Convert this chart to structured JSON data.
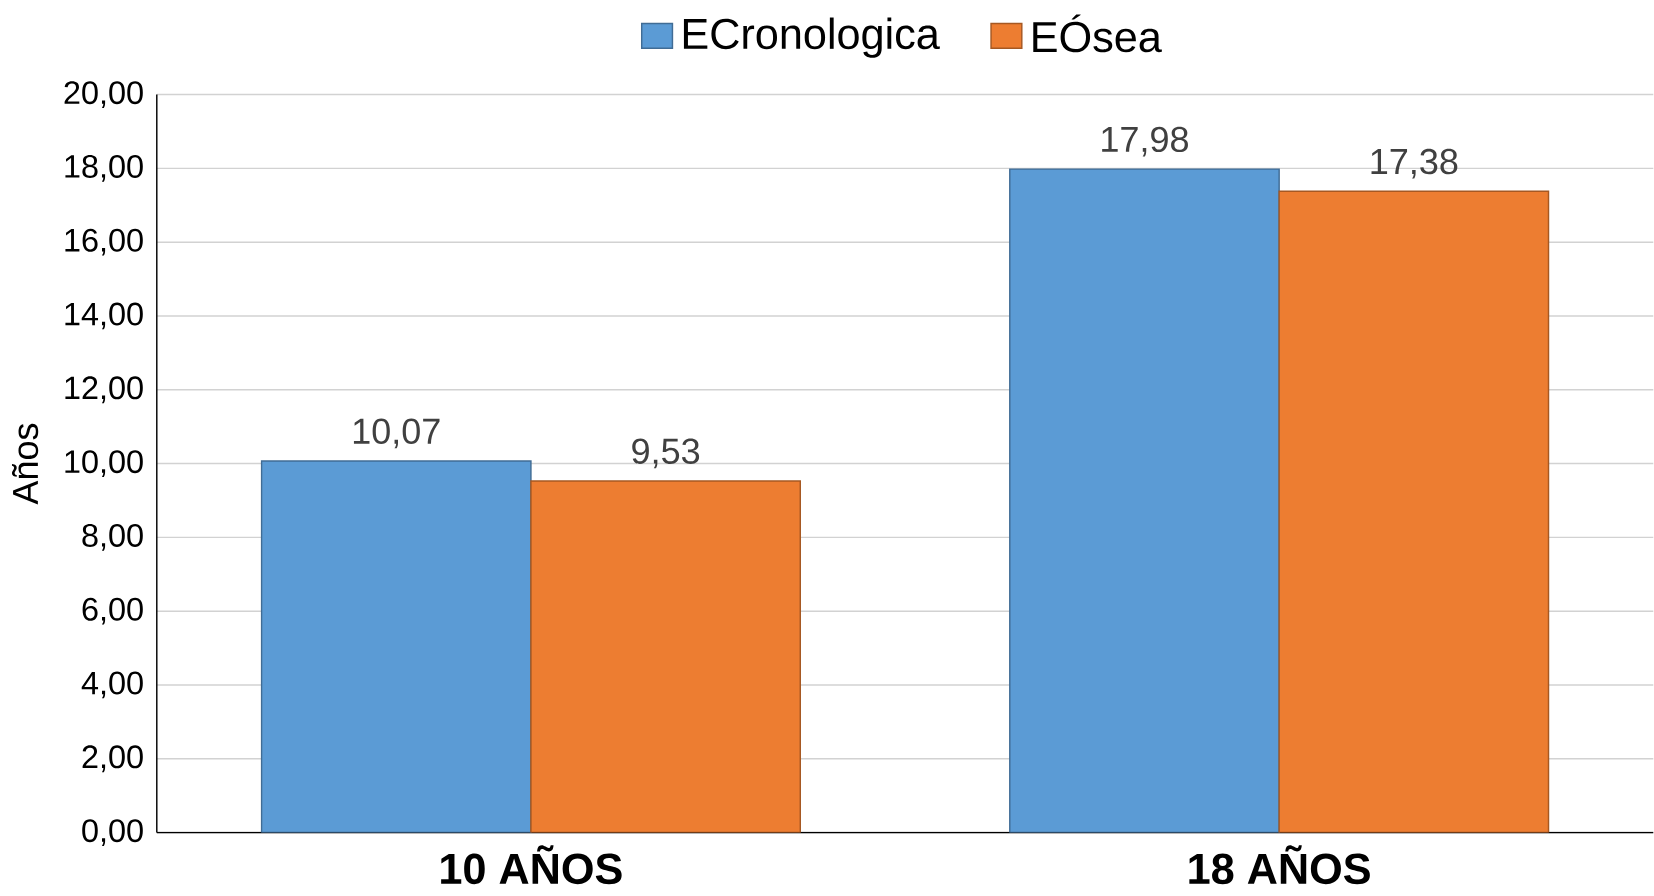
{
  "chart_data": {
    "type": "bar",
    "ylabel": "Años",
    "categories": [
      "10 AÑOS",
      "18 AÑOS"
    ],
    "series": [
      {
        "name": "ECronologica",
        "color": "#5b9bd5",
        "values": [
          10.07,
          17.98
        ],
        "value_labels": [
          "10,07",
          "17,98"
        ]
      },
      {
        "name": "EÓsea",
        "color": "#ed7d31",
        "values": [
          9.53,
          17.38
        ],
        "value_labels": [
          "9,53",
          "17,38"
        ]
      }
    ],
    "ylim": [
      0,
      20
    ],
    "yticks": [
      {
        "value": 0,
        "label": "0,00"
      },
      {
        "value": 2,
        "label": "2,00"
      },
      {
        "value": 4,
        "label": "4,00"
      },
      {
        "value": 6,
        "label": "6,00"
      },
      {
        "value": 8,
        "label": "8,00"
      },
      {
        "value": 10,
        "label": "10,00"
      },
      {
        "value": 12,
        "label": "12,00"
      },
      {
        "value": 14,
        "label": "14,00"
      },
      {
        "value": 16,
        "label": "16,00"
      },
      {
        "value": 18,
        "label": "18,00"
      },
      {
        "value": 20,
        "label": "20,00"
      }
    ],
    "grid": "y",
    "legend": "top"
  }
}
